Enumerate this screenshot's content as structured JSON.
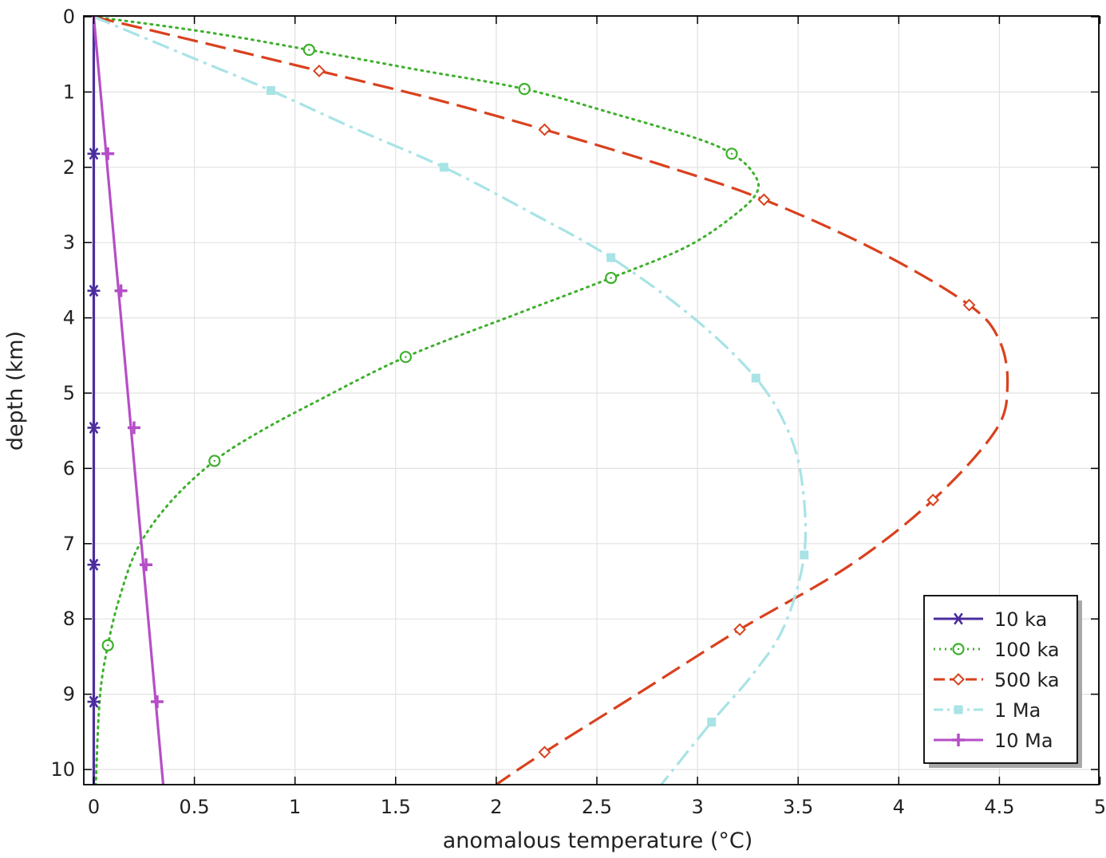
{
  "chart_data": {
    "type": "line",
    "title": "",
    "xlabel": "anomalous temperature (°C)",
    "ylabel": "depth (km)",
    "xlim": [
      -0.05,
      5
    ],
    "ylim": [
      0,
      10.2
    ],
    "y_inverted": true,
    "x_ticks": [
      "0",
      "0.5",
      "1",
      "1.5",
      "2",
      "2.5",
      "3",
      "3.5",
      "4",
      "4.5",
      "5"
    ],
    "y_ticks": [
      "0",
      "1",
      "2",
      "3",
      "4",
      "5",
      "6",
      "7",
      "8",
      "9",
      "10"
    ],
    "grid": true,
    "legend_position": "bottom-right",
    "series": [
      {
        "name": "10 ka",
        "color": "#4b2d9e",
        "line_style": "solid",
        "marker": "asterisk",
        "curve": [
          [
            0,
            0
          ],
          [
            0,
            10.2
          ]
        ],
        "markers": [
          [
            0,
            1.82
          ],
          [
            0,
            3.64
          ],
          [
            0,
            5.46
          ],
          [
            0,
            7.28
          ],
          [
            0,
            9.1
          ]
        ]
      },
      {
        "name": "100 ka",
        "color": "#3cb02b",
        "line_style": "dotted",
        "marker": "circle",
        "curve": [
          [
            0,
            0
          ],
          [
            0.55,
            0.2
          ],
          [
            1.07,
            0.44
          ],
          [
            1.6,
            0.7
          ],
          [
            2.14,
            0.96
          ],
          [
            2.6,
            1.3
          ],
          [
            3.0,
            1.62
          ],
          [
            3.17,
            1.82
          ],
          [
            3.27,
            2.05
          ],
          [
            3.3,
            2.3
          ],
          [
            3.2,
            2.6
          ],
          [
            2.95,
            3.05
          ],
          [
            2.57,
            3.47
          ],
          [
            2.1,
            3.95
          ],
          [
            1.55,
            4.52
          ],
          [
            1.1,
            5.12
          ],
          [
            0.82,
            5.52
          ],
          [
            0.6,
            5.9
          ],
          [
            0.38,
            6.45
          ],
          [
            0.22,
            7.05
          ],
          [
            0.13,
            7.7
          ],
          [
            0.07,
            8.35
          ],
          [
            0.03,
            9.05
          ],
          [
            0.01,
            10.2
          ]
        ],
        "markers": [
          [
            1.07,
            0.44
          ],
          [
            2.14,
            0.96
          ],
          [
            3.17,
            1.82
          ],
          [
            2.57,
            3.47
          ],
          [
            1.55,
            4.52
          ],
          [
            0.6,
            5.9
          ],
          [
            0.07,
            8.35
          ]
        ]
      },
      {
        "name": "500 ka",
        "color": "#d9411e",
        "line_style": "dashed",
        "marker": "diamond",
        "curve": [
          [
            0,
            0
          ],
          [
            0.55,
            0.35
          ],
          [
            1.12,
            0.72
          ],
          [
            1.7,
            1.1
          ],
          [
            2.24,
            1.5
          ],
          [
            2.8,
            1.95
          ],
          [
            3.33,
            2.43
          ],
          [
            3.9,
            3.12
          ],
          [
            4.35,
            3.83
          ],
          [
            4.5,
            4.3
          ],
          [
            4.54,
            4.9
          ],
          [
            4.48,
            5.5
          ],
          [
            4.17,
            6.42
          ],
          [
            3.75,
            7.3
          ],
          [
            3.21,
            8.14
          ],
          [
            2.7,
            9.0
          ],
          [
            2.24,
            9.77
          ],
          [
            2.0,
            10.2
          ]
        ],
        "markers": [
          [
            1.12,
            0.72
          ],
          [
            2.24,
            1.5
          ],
          [
            3.33,
            2.43
          ],
          [
            4.35,
            3.83
          ],
          [
            4.17,
            6.42
          ],
          [
            3.21,
            8.14
          ],
          [
            2.24,
            9.77
          ]
        ]
      },
      {
        "name": "1 Ma",
        "color": "#a8e3e6",
        "line_style": "dashdot",
        "marker": "square",
        "curve": [
          [
            0,
            0
          ],
          [
            0.44,
            0.49
          ],
          [
            0.88,
            0.98
          ],
          [
            1.3,
            1.49
          ],
          [
            1.74,
            2.0
          ],
          [
            2.17,
            2.6
          ],
          [
            2.57,
            3.2
          ],
          [
            2.98,
            4.0
          ],
          [
            3.29,
            4.8
          ],
          [
            3.45,
            5.5
          ],
          [
            3.52,
            6.2
          ],
          [
            3.53,
            7.15
          ],
          [
            3.43,
            8.1
          ],
          [
            3.27,
            8.75
          ],
          [
            3.07,
            9.37
          ],
          [
            2.82,
            10.2
          ]
        ],
        "markers": [
          [
            0.88,
            0.98
          ],
          [
            1.74,
            2.0
          ],
          [
            2.57,
            3.2
          ],
          [
            3.29,
            4.8
          ],
          [
            3.53,
            7.15
          ],
          [
            3.07,
            9.37
          ]
        ]
      },
      {
        "name": "10 Ma",
        "color": "#b64ec7",
        "line_style": "solid",
        "marker": "plus",
        "curve": [
          [
            0,
            0
          ],
          [
            0.345,
            10.2
          ]
        ],
        "markers": [
          [
            0.07,
            1.82
          ],
          [
            0.135,
            3.64
          ],
          [
            0.2,
            5.46
          ],
          [
            0.26,
            7.28
          ],
          [
            0.315,
            9.1
          ]
        ]
      }
    ]
  }
}
